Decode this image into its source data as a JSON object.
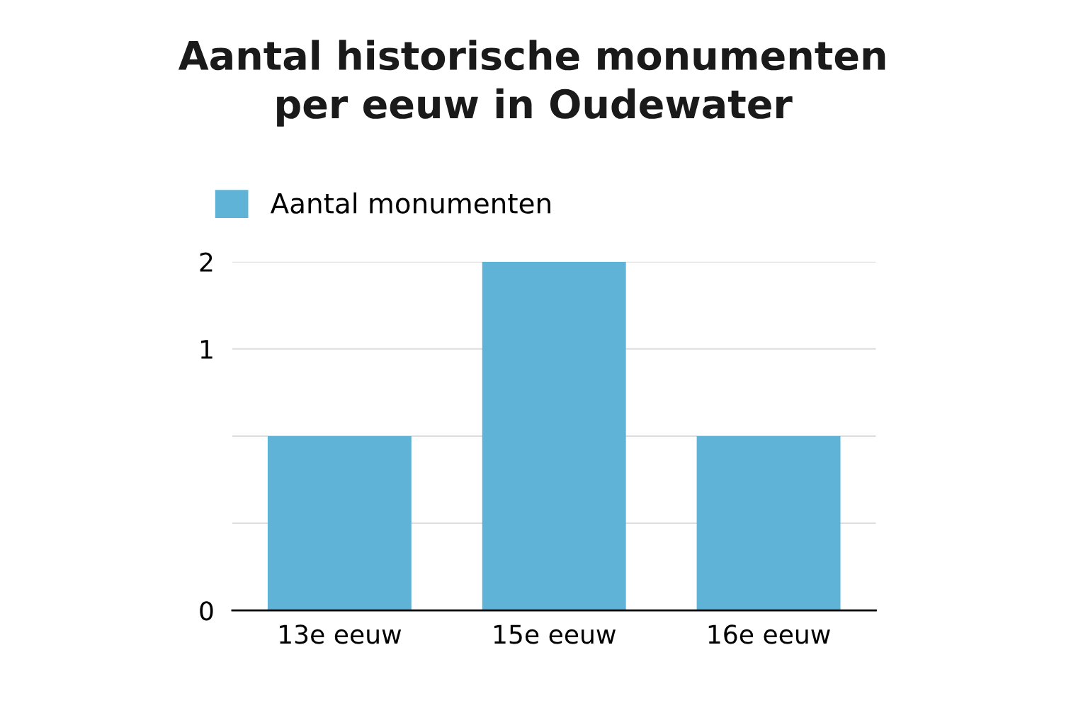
{
  "chart_data": {
    "type": "bar",
    "title": "Aantal historische monumenten\nper eeuw in Oudewater",
    "categories": [
      "13e eeuw",
      "15e eeuw",
      "16e eeuw"
    ],
    "series": [
      {
        "name": "Aantal monumenten",
        "color": "#5eb3d6",
        "values": [
          1,
          2,
          1
        ]
      }
    ],
    "ylim": [
      0,
      2
    ],
    "yticks": [
      0,
      {
        "value": 0.5,
        "label": null
      },
      {
        "value": 1,
        "label": null
      },
      {
        "value": 1.5,
        "label": "1"
      },
      2
    ],
    "grid": "y",
    "legend": "top left"
  }
}
